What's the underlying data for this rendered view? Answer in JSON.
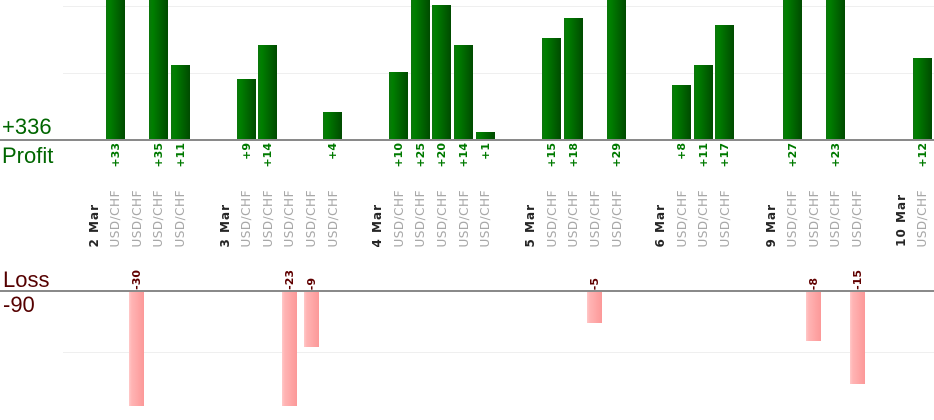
{
  "chart_data": {
    "type": "bar",
    "orientation": "vertical-grouped-by-date",
    "axis": {
      "profit_label": "Profit",
      "loss_label": "Loss",
      "gridline_step": 10,
      "grid": true
    },
    "totals": {
      "profit": "+336",
      "loss": "-90"
    },
    "groups": [
      {
        "date": "2 Mar",
        "trades": [
          {
            "symbol": "USD/CHF",
            "value": 33
          },
          {
            "symbol": "USD/CHF",
            "value": -30
          },
          {
            "symbol": "USD/CHF",
            "value": 35
          },
          {
            "symbol": "USD/CHF",
            "value": 11
          }
        ]
      },
      {
        "date": "3 Mar",
        "trades": [
          {
            "symbol": "USD/CHF",
            "value": 9
          },
          {
            "symbol": "USD/CHF",
            "value": 14
          },
          {
            "symbol": "USD/CHF",
            "value": -23
          },
          {
            "symbol": "USD/CHF",
            "value": -9
          },
          {
            "symbol": "USD/CHF",
            "value": 4
          }
        ]
      },
      {
        "date": "4 Mar",
        "trades": [
          {
            "symbol": "USD/CHF",
            "value": 10
          },
          {
            "symbol": "USD/CHF",
            "value": 25
          },
          {
            "symbol": "USD/CHF",
            "value": 20
          },
          {
            "symbol": "USD/CHF",
            "value": 14
          },
          {
            "symbol": "USD/CHF",
            "value": 1
          }
        ]
      },
      {
        "date": "5 Mar",
        "trades": [
          {
            "symbol": "USD/CHF",
            "value": 15
          },
          {
            "symbol": "USD/CHF",
            "value": 18
          },
          {
            "symbol": "USD/CHF",
            "value": -5
          },
          {
            "symbol": "USD/CHF",
            "value": 29
          }
        ]
      },
      {
        "date": "6 Mar",
        "trades": [
          {
            "symbol": "USD/CHF",
            "value": 8
          },
          {
            "symbol": "USD/CHF",
            "value": 11
          },
          {
            "symbol": "USD/CHF",
            "value": 17
          }
        ]
      },
      {
        "date": "9 Mar",
        "trades": [
          {
            "symbol": "USD/CHF",
            "value": 27
          },
          {
            "symbol": "USD/CHF",
            "value": -8
          },
          {
            "symbol": "USD/CHF",
            "value": 23
          },
          {
            "symbol": "USD/CHF",
            "value": -15
          }
        ]
      },
      {
        "date": "10 Mar",
        "trades": [
          {
            "symbol": "USD/CHF",
            "value": 12
          }
        ]
      }
    ]
  },
  "colors": {
    "profit_title": "#006600",
    "profit_text": "#007a00",
    "profit_bar_edge": "#0d750d",
    "profit_bar_light": "#008000",
    "profit_bar_dark": "#004a00",
    "loss_title": "#550000",
    "loss_text": "#600000",
    "loss_bar_edge": "#ffc9c9",
    "loss_bar_light": "#ffb4b4",
    "loss_bar_dark": "#fc9898",
    "symbol_text": "#a8a8a8",
    "date_text": "#262626",
    "axis_line": "#8a8a8a",
    "gridline": "#efefef"
  }
}
